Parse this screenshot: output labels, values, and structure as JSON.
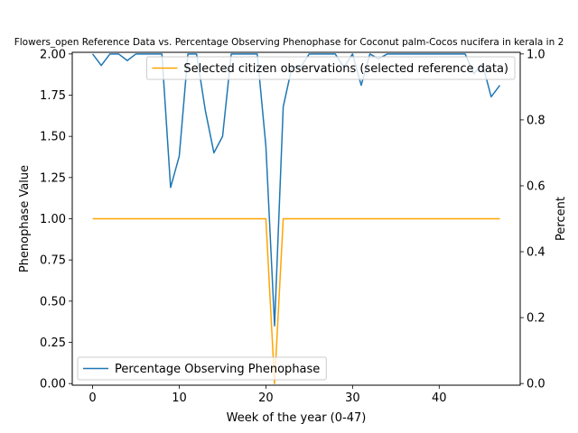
{
  "chart_data": {
    "type": "line",
    "title": "Flowers_open Reference Data vs. Percentage Observing Phenophase for Coconut palm-Cocos nucifera in kerala in 2",
    "xlabel": "Week of the year (0-47)",
    "ylabel_left": "Phenophase Value",
    "ylabel_right": "Percent",
    "xlim": [
      -2.35,
      49.35
    ],
    "ylim_left": [
      -0.01,
      2.01
    ],
    "ylim_right": [
      -0.005,
      1.005
    ],
    "x_ticks": [
      0,
      10,
      20,
      30,
      40
    ],
    "x_tick_labels": [
      "0",
      "10",
      "20",
      "30",
      "40"
    ],
    "y_left_ticks": [
      0.0,
      0.25,
      0.5,
      0.75,
      1.0,
      1.25,
      1.5,
      1.75,
      2.0
    ],
    "y_left_tick_labels": [
      "0.00",
      "0.25",
      "0.50",
      "0.75",
      "1.00",
      "1.25",
      "1.50",
      "1.75",
      "2.00"
    ],
    "y_right_ticks": [
      0.0,
      0.2,
      0.4,
      0.6,
      0.8,
      1.0
    ],
    "y_right_tick_labels": [
      "0.0",
      "0.2",
      "0.4",
      "0.6",
      "0.8",
      "1.0"
    ],
    "grid": false,
    "series": [
      {
        "name": "Selected citizen observations (selected reference data)",
        "axis": "left",
        "color": "#ffa500",
        "legend_position": "upper-right",
        "x": [
          0,
          1,
          2,
          3,
          4,
          5,
          6,
          7,
          8,
          9,
          10,
          11,
          12,
          13,
          14,
          15,
          16,
          17,
          18,
          19,
          20,
          21,
          22,
          23,
          24,
          25,
          26,
          27,
          28,
          29,
          30,
          31,
          32,
          33,
          34,
          35,
          36,
          37,
          38,
          39,
          40,
          41,
          42,
          43,
          44,
          45,
          46,
          47
        ],
        "values": [
          1,
          1,
          1,
          1,
          1,
          1,
          1,
          1,
          1,
          1,
          1,
          1,
          1,
          1,
          1,
          1,
          1,
          1,
          1,
          1,
          1,
          0,
          1,
          1,
          1,
          1,
          1,
          1,
          1,
          1,
          1,
          1,
          1,
          1,
          1,
          1,
          1,
          1,
          1,
          1,
          1,
          1,
          1,
          1,
          1,
          1,
          1,
          1
        ]
      },
      {
        "name": "Percentage Observing Phenophase",
        "axis": "right",
        "color": "#1f77b4",
        "legend_position": "lower-left",
        "x": [
          0,
          1,
          2,
          3,
          4,
          5,
          6,
          7,
          8,
          9,
          10,
          11,
          12,
          13,
          14,
          15,
          16,
          17,
          18,
          19,
          20,
          21,
          22,
          23,
          24,
          25,
          26,
          27,
          28,
          29,
          30,
          31,
          32,
          33,
          34,
          35,
          36,
          37,
          38,
          39,
          40,
          41,
          42,
          43,
          44,
          45,
          46,
          47
        ],
        "values": [
          1,
          0.965,
          1,
          1,
          0.98,
          1,
          1,
          1,
          1,
          0.595,
          0.69,
          1,
          1,
          0.83,
          0.7,
          0.75,
          1,
          1,
          1,
          1,
          0.72,
          0.175,
          0.84,
          0.96,
          0.96,
          1,
          1,
          1,
          1,
          0.96,
          1,
          0.905,
          1,
          0.985,
          1,
          1,
          1,
          1,
          1,
          1,
          1,
          1,
          1,
          1,
          0.94,
          0.97,
          0.87,
          0.905
        ]
      }
    ]
  }
}
